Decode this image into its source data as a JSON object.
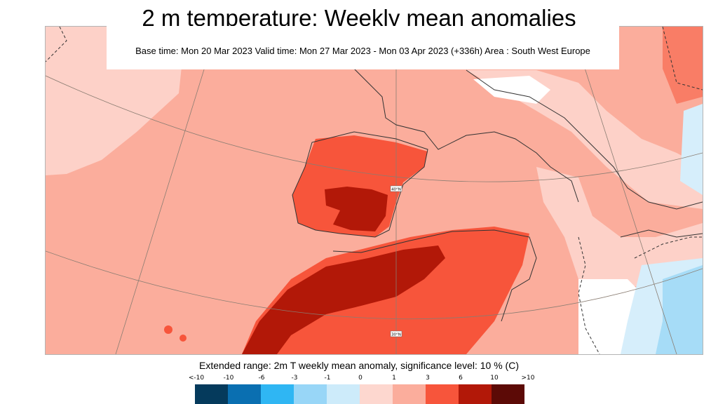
{
  "title": "2 m temperature: Weekly mean anomalies",
  "subtitle": "Base time: Mon 20 Mar 2023 Valid time: Mon 27 Mar 2023 - Mon 03 Apr 2023 (+336h) Area : South West Europe",
  "caption": "Extended range: 2m T weekly mean anomaly, significance level: 10 % (C)",
  "map": {
    "lat_labels": [
      "40°N",
      "30°N"
    ],
    "palette": {
      "bg": "#fbad9c",
      "light_pink": "#fdd1c8",
      "white": "#ffffff",
      "red": "#f7553b",
      "dark_red": "#b21808",
      "very_light_blue": "#d6eefb",
      "light_blue": "#a6dcf7"
    }
  },
  "legend": {
    "ticks": [
      "<-10",
      "-10",
      "-6",
      "-3",
      "-1",
      "0",
      "1",
      "3",
      "6",
      "10",
      ">10"
    ],
    "colors": [
      "#053a5c",
      "#0a6fb1",
      "#2fb6f3",
      "#98d6f7",
      "#cdebfa",
      "#fdd7cf",
      "#fbad9c",
      "#f7553b",
      "#b21808",
      "#5c0a06"
    ]
  }
}
